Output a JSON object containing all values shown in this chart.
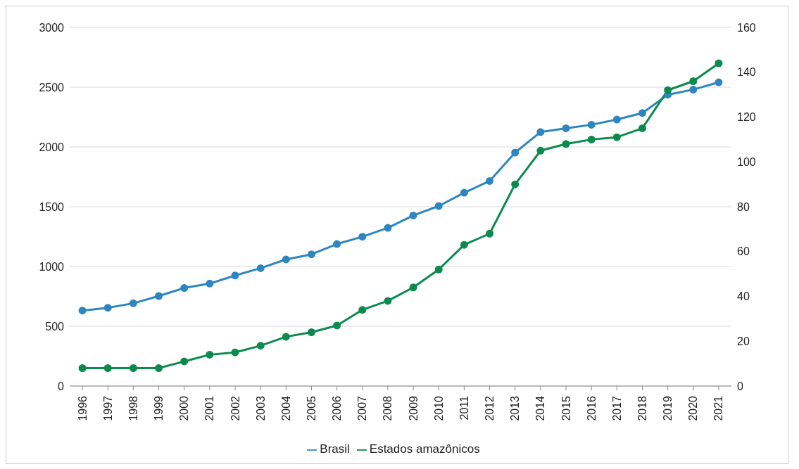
{
  "chart_data": {
    "type": "line",
    "categories": [
      "1996",
      "1997",
      "1998",
      "1999",
      "2000",
      "2001",
      "2002",
      "2003",
      "2004",
      "2005",
      "2006",
      "2007",
      "2008",
      "2009",
      "2010",
      "2011",
      "2012",
      "2013",
      "2014",
      "2015",
      "2016",
      "2017",
      "2018",
      "2019",
      "2020",
      "2021"
    ],
    "series": [
      {
        "name": "Brasil",
        "color": "#2e86c1",
        "values": [
          631,
          655,
          692,
          753,
          820,
          857,
          925,
          986,
          1059,
          1102,
          1188,
          1249,
          1323,
          1427,
          1506,
          1617,
          1715,
          1953,
          2125,
          2156,
          2186,
          2229,
          2284,
          2437,
          2480,
          2541
        ]
      },
      {
        "name": "Estados amazônicos",
        "color": "#0b8a4e",
        "axis": "y2",
        "values": [
          8,
          8,
          8,
          8,
          11,
          14,
          15,
          18,
          22,
          24,
          27,
          34,
          38,
          44,
          52,
          63,
          68,
          90,
          105,
          108,
          110,
          111,
          115,
          132,
          136,
          144
        ]
      }
    ],
    "ylim": [
      0,
      3000
    ],
    "yticks": [
      0,
      500,
      1000,
      1500,
      2000,
      2500,
      3000
    ],
    "y2lim": [
      0,
      160
    ],
    "y2ticks": [
      0,
      20,
      40,
      60,
      80,
      100,
      120,
      140,
      160
    ],
    "grid": "y",
    "legend": "bottom",
    "marker": "circle",
    "line_style": "solid"
  }
}
